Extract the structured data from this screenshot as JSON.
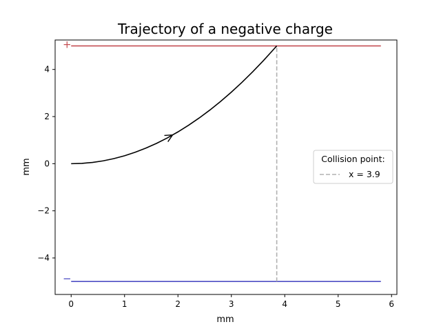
{
  "chart_data": {
    "type": "line",
    "title": "Trajectory of a negative charge",
    "xlabel": "mm",
    "ylabel": "mm",
    "xlim": [
      -0.3,
      6.1
    ],
    "ylim": [
      -5.55,
      5.25
    ],
    "x_ticks": [
      0,
      1,
      2,
      3,
      4,
      5,
      6
    ],
    "y_ticks": [
      -4,
      -2,
      0,
      2,
      4
    ],
    "x_tick_labels": [
      "0",
      "1",
      "2",
      "3",
      "4",
      "5",
      "6"
    ],
    "y_tick_labels": [
      "−4",
      "−2",
      "0",
      "2",
      "4"
    ],
    "grid": false,
    "trajectory": {
      "color": "#000000",
      "x": [
        0,
        0.2,
        0.4,
        0.6,
        0.8,
        1.0,
        1.2,
        1.4,
        1.6,
        1.8,
        2.0,
        2.2,
        2.4,
        2.6,
        2.8,
        3.0,
        3.2,
        3.4,
        3.6,
        3.8,
        3.85
      ],
      "y": [
        0,
        0.013,
        0.054,
        0.121,
        0.216,
        0.337,
        0.486,
        0.661,
        0.864,
        1.093,
        1.35,
        1.633,
        1.944,
        2.281,
        2.646,
        3.037,
        3.456,
        3.901,
        4.374,
        4.873,
        5.0
      ],
      "arrow_at": [
        1.9,
        1.22
      ]
    },
    "plates": [
      {
        "y": 5,
        "x_range": [
          0,
          5.8
        ],
        "color": "#c44e52",
        "sign": "+"
      },
      {
        "y": -5,
        "x_range": [
          0,
          5.8
        ],
        "color": "#4c4cc4",
        "sign": "−"
      }
    ],
    "collision_line": {
      "x": 3.85,
      "y_range": [
        -5,
        5
      ],
      "color": "#b0b0b0",
      "style": "dashed"
    },
    "legend": {
      "title": "Collision point:",
      "entries": [
        {
          "label": "x = 3.9",
          "color": "#b0b0b0",
          "style": "dashed"
        }
      ],
      "placement": "center-right"
    }
  }
}
